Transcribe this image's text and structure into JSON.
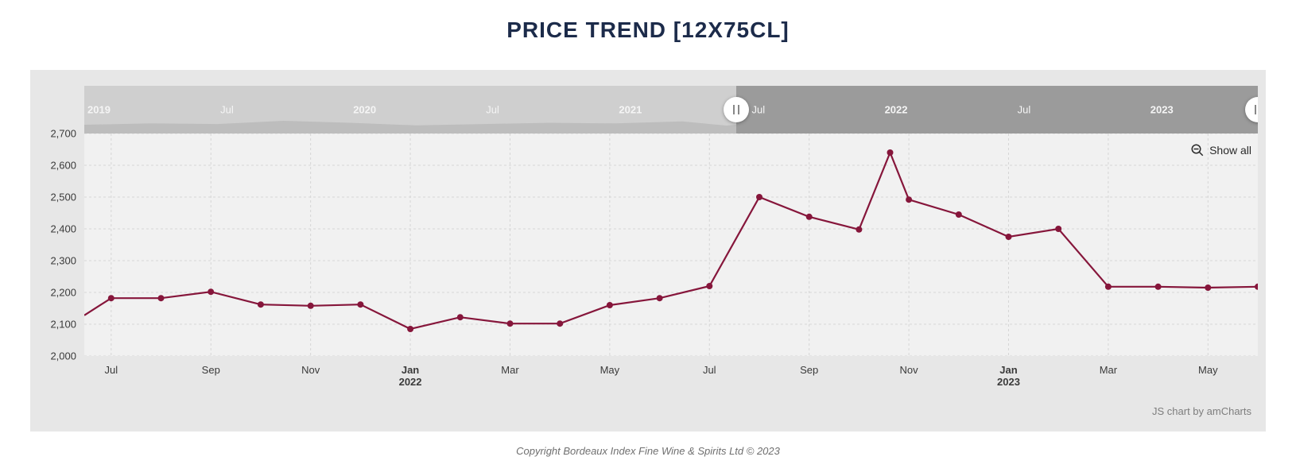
{
  "title": "PRICE TREND [12X75CL]",
  "copyright": "Copyright Bordeaux Index Fine Wine & Spirits Ltd © 2023",
  "credit": "JS chart by amCharts",
  "show_all_label": "Show all",
  "chart": {
    "type": "line",
    "background_color": "#e7e7e7",
    "plot_bg": "#f1f1f1",
    "grid_color": "#d6d6d6",
    "grid_dash": "3 3",
    "line_color": "#86163b",
    "marker_color": "#86163b",
    "marker_radius": 4,
    "line_width": 2.2,
    "ylim": [
      2000,
      2700
    ],
    "ytick_step": 100,
    "xlabels": [
      {
        "t": "2021-07",
        "label": "Jul"
      },
      {
        "t": "2021-09",
        "label": "Sep"
      },
      {
        "t": "2021-11",
        "label": "Nov"
      },
      {
        "t": "2022-01",
        "label": "Jan",
        "year": "2022",
        "bold": true
      },
      {
        "t": "2022-03",
        "label": "Mar"
      },
      {
        "t": "2022-05",
        "label": "May"
      },
      {
        "t": "2022-07",
        "label": "Jul"
      },
      {
        "t": "2022-09",
        "label": "Sep"
      },
      {
        "t": "2022-11",
        "label": "Nov"
      },
      {
        "t": "2023-01",
        "label": "Jan",
        "year": "2023",
        "bold": true
      },
      {
        "t": "2023-03",
        "label": "Mar"
      },
      {
        "t": "2023-05",
        "label": "May"
      }
    ],
    "series": [
      {
        "t": "2021-06-15",
        "v": 2128
      },
      {
        "t": "2021-07",
        "v": 2182
      },
      {
        "t": "2021-08",
        "v": 2182
      },
      {
        "t": "2021-09",
        "v": 2202
      },
      {
        "t": "2021-10",
        "v": 2162
      },
      {
        "t": "2021-11",
        "v": 2158
      },
      {
        "t": "2021-12",
        "v": 2162
      },
      {
        "t": "2022-01",
        "v": 2085
      },
      {
        "t": "2022-02",
        "v": 2122
      },
      {
        "t": "2022-03",
        "v": 2102
      },
      {
        "t": "2022-04",
        "v": 2102
      },
      {
        "t": "2022-05",
        "v": 2160
      },
      {
        "t": "2022-06",
        "v": 2182
      },
      {
        "t": "2022-07",
        "v": 2220
      },
      {
        "t": "2022-08",
        "v": 2500
      },
      {
        "t": "2022-09",
        "v": 2438
      },
      {
        "t": "2022-10",
        "v": 2398
      },
      {
        "t": "2022-10-20",
        "v": 2640
      },
      {
        "t": "2022-11",
        "v": 2492
      },
      {
        "t": "2022-12",
        "v": 2445
      },
      {
        "t": "2023-01",
        "v": 2375
      },
      {
        "t": "2023-02",
        "v": 2400
      },
      {
        "t": "2023-03",
        "v": 2218
      },
      {
        "t": "2023-04",
        "v": 2218
      },
      {
        "t": "2023-05",
        "v": 2215
      },
      {
        "t": "2023-06",
        "v": 2218
      }
    ],
    "visible_range": [
      "2021-06-15",
      "2023-06"
    ],
    "full_range": [
      "2019-01",
      "2023-06"
    ]
  },
  "scrollbar": {
    "bg_color": "#cfcfcf",
    "sel_color": "#9b9b9b",
    "label_color": "#f5f5f5",
    "spark_color_dim": "#bdbdbd",
    "spark_color_sel": "#7a7a7a",
    "labels": [
      {
        "t": "2019-01",
        "text": "2019",
        "bold": true
      },
      {
        "t": "2019-07",
        "text": "Jul"
      },
      {
        "t": "2020-01",
        "text": "2020",
        "bold": true
      },
      {
        "t": "2020-07",
        "text": "Jul"
      },
      {
        "t": "2021-01",
        "text": "2021",
        "bold": true
      },
      {
        "t": "2021-07",
        "text": "Jul"
      },
      {
        "t": "2022-01",
        "text": "2022",
        "bold": true
      },
      {
        "t": "2022-07",
        "text": "Jul"
      },
      {
        "t": "2023-01",
        "text": "2023",
        "bold": true
      }
    ],
    "spark": [
      {
        "t": "2019-01",
        "v": 2140
      },
      {
        "t": "2019-04",
        "v": 2160
      },
      {
        "t": "2019-07",
        "v": 2150
      },
      {
        "t": "2019-10",
        "v": 2200
      },
      {
        "t": "2020-01",
        "v": 2170
      },
      {
        "t": "2020-04",
        "v": 2130
      },
      {
        "t": "2020-07",
        "v": 2150
      },
      {
        "t": "2020-10",
        "v": 2170
      },
      {
        "t": "2021-01",
        "v": 2160
      },
      {
        "t": "2021-04",
        "v": 2190
      },
      {
        "t": "2021-06",
        "v": 2128
      },
      {
        "t": "2021-09",
        "v": 2202
      },
      {
        "t": "2022-01",
        "v": 2085
      },
      {
        "t": "2022-04",
        "v": 2102
      },
      {
        "t": "2022-07",
        "v": 2220
      },
      {
        "t": "2022-08",
        "v": 2500
      },
      {
        "t": "2022-10",
        "v": 2640
      },
      {
        "t": "2022-11",
        "v": 2492
      },
      {
        "t": "2023-01",
        "v": 2375
      },
      {
        "t": "2023-02",
        "v": 2400
      },
      {
        "t": "2023-03",
        "v": 2218
      },
      {
        "t": "2023-06",
        "v": 2218
      }
    ]
  }
}
